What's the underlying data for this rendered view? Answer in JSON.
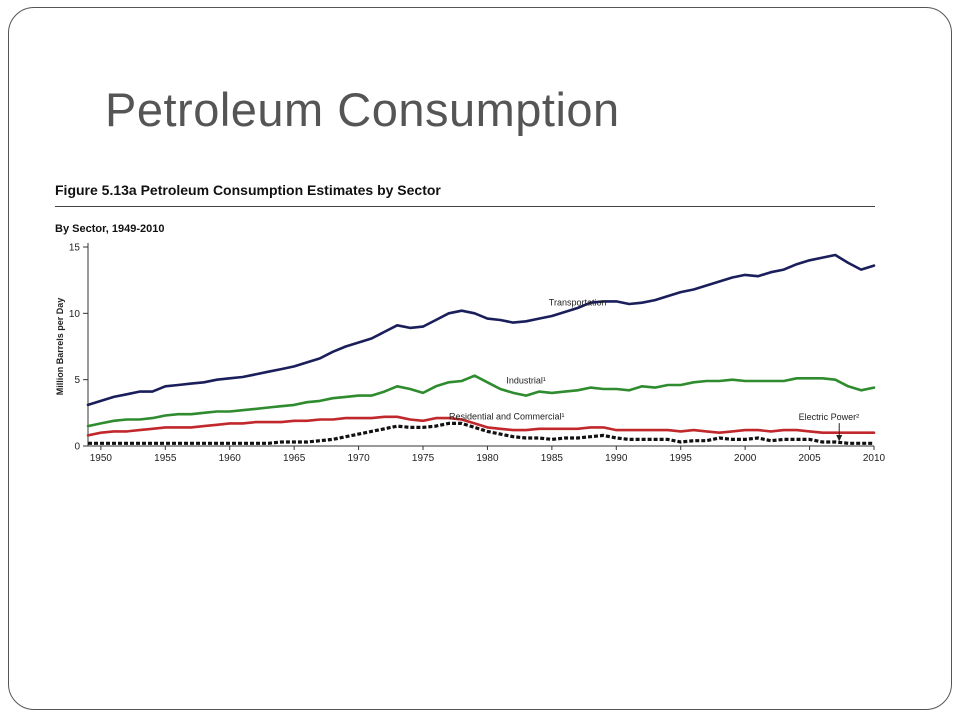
{
  "slide": {
    "title": "Petroleum Consumption"
  },
  "figure": {
    "title": "Figure 5.13a  Petroleum Consumption Estimates by Sector",
    "subtitle": "By Sector, 1949-2010"
  },
  "chart_data": {
    "type": "line",
    "title": "Figure 5.13a  Petroleum Consumption Estimates by Sector",
    "subtitle": "By Sector, 1949-2010",
    "xlabel": "",
    "ylabel": "Million Barrels per Day",
    "xlim": [
      1949,
      2010
    ],
    "ylim": [
      0,
      15
    ],
    "xticks": [
      1950,
      1955,
      1960,
      1965,
      1970,
      1975,
      1980,
      1985,
      1990,
      1995,
      2000,
      2005,
      2010
    ],
    "yticks": [
      0,
      5,
      10,
      15
    ],
    "grid": false,
    "legend": "none (series labeled directly on lines)",
    "series": [
      {
        "name": "Transportation",
        "color": "#1a1f5c",
        "style": "solid",
        "x": [
          1949,
          1950,
          1951,
          1952,
          1953,
          1954,
          1955,
          1956,
          1957,
          1958,
          1959,
          1960,
          1961,
          1962,
          1963,
          1964,
          1965,
          1966,
          1967,
          1968,
          1969,
          1970,
          1971,
          1972,
          1973,
          1974,
          1975,
          1976,
          1977,
          1978,
          1979,
          1980,
          1981,
          1982,
          1983,
          1984,
          1985,
          1986,
          1987,
          1988,
          1989,
          1990,
          1991,
          1992,
          1993,
          1994,
          1995,
          1996,
          1997,
          1998,
          1999,
          2000,
          2001,
          2002,
          2003,
          2004,
          2005,
          2006,
          2007,
          2008,
          2009,
          2010
        ],
        "values": [
          3.1,
          3.4,
          3.7,
          3.9,
          4.1,
          4.1,
          4.5,
          4.6,
          4.7,
          4.8,
          5.0,
          5.1,
          5.2,
          5.4,
          5.6,
          5.8,
          6.0,
          6.3,
          6.6,
          7.1,
          7.5,
          7.8,
          8.1,
          8.6,
          9.1,
          8.9,
          9.0,
          9.5,
          10.0,
          10.2,
          10.0,
          9.6,
          9.5,
          9.3,
          9.4,
          9.6,
          9.8,
          10.1,
          10.4,
          10.8,
          10.9,
          10.9,
          10.7,
          10.8,
          11.0,
          11.3,
          11.6,
          11.8,
          12.1,
          12.4,
          12.7,
          12.9,
          12.8,
          13.1,
          13.3,
          13.7,
          14.0,
          14.2,
          14.4,
          13.8,
          13.3,
          13.6
        ]
      },
      {
        "name": "Industrial¹",
        "color": "#2e8b2e",
        "style": "solid",
        "x": [
          1949,
          1950,
          1951,
          1952,
          1953,
          1954,
          1955,
          1956,
          1957,
          1958,
          1959,
          1960,
          1961,
          1962,
          1963,
          1964,
          1965,
          1966,
          1967,
          1968,
          1969,
          1970,
          1971,
          1972,
          1973,
          1974,
          1975,
          1976,
          1977,
          1978,
          1979,
          1980,
          1981,
          1982,
          1983,
          1984,
          1985,
          1986,
          1987,
          1988,
          1989,
          1990,
          1991,
          1992,
          1993,
          1994,
          1995,
          1996,
          1997,
          1998,
          1999,
          2000,
          2001,
          2002,
          2003,
          2004,
          2005,
          2006,
          2007,
          2008,
          2009,
          2010
        ],
        "values": [
          1.5,
          1.7,
          1.9,
          2.0,
          2.0,
          2.1,
          2.3,
          2.4,
          2.4,
          2.5,
          2.6,
          2.6,
          2.7,
          2.8,
          2.9,
          3.0,
          3.1,
          3.3,
          3.4,
          3.6,
          3.7,
          3.8,
          3.8,
          4.1,
          4.5,
          4.3,
          4.0,
          4.5,
          4.8,
          4.9,
          5.3,
          4.8,
          4.3,
          4.0,
          3.8,
          4.1,
          4.0,
          4.1,
          4.2,
          4.4,
          4.3,
          4.3,
          4.2,
          4.5,
          4.4,
          4.6,
          4.6,
          4.8,
          4.9,
          4.9,
          5.0,
          4.9,
          4.9,
          4.9,
          4.9,
          5.1,
          5.1,
          5.1,
          5.0,
          4.5,
          4.2,
          4.4
        ]
      },
      {
        "name": "Residential and Commercial¹",
        "color": "#c0282c",
        "style": "solid",
        "x": [
          1949,
          1950,
          1951,
          1952,
          1953,
          1954,
          1955,
          1956,
          1957,
          1958,
          1959,
          1960,
          1961,
          1962,
          1963,
          1964,
          1965,
          1966,
          1967,
          1968,
          1969,
          1970,
          1971,
          1972,
          1973,
          1974,
          1975,
          1976,
          1977,
          1978,
          1979,
          1980,
          1981,
          1982,
          1983,
          1984,
          1985,
          1986,
          1987,
          1988,
          1989,
          1990,
          1991,
          1992,
          1993,
          1994,
          1995,
          1996,
          1997,
          1998,
          1999,
          2000,
          2001,
          2002,
          2003,
          2004,
          2005,
          2006,
          2007,
          2008,
          2009,
          2010
        ],
        "values": [
          0.8,
          1.0,
          1.1,
          1.1,
          1.2,
          1.3,
          1.4,
          1.4,
          1.4,
          1.5,
          1.6,
          1.7,
          1.7,
          1.8,
          1.8,
          1.8,
          1.9,
          1.9,
          2.0,
          2.0,
          2.1,
          2.1,
          2.1,
          2.2,
          2.2,
          2.0,
          1.9,
          2.1,
          2.1,
          2.0,
          1.7,
          1.4,
          1.3,
          1.2,
          1.2,
          1.3,
          1.3,
          1.3,
          1.3,
          1.4,
          1.4,
          1.2,
          1.2,
          1.2,
          1.2,
          1.2,
          1.1,
          1.2,
          1.1,
          1.0,
          1.1,
          1.2,
          1.2,
          1.1,
          1.2,
          1.2,
          1.1,
          1.0,
          1.0,
          1.0,
          1.0,
          1.0
        ]
      },
      {
        "name": "Electric Power²",
        "color": "#111111",
        "style": "dashed",
        "x": [
          1949,
          1950,
          1951,
          1952,
          1953,
          1954,
          1955,
          1956,
          1957,
          1958,
          1959,
          1960,
          1961,
          1962,
          1963,
          1964,
          1965,
          1966,
          1967,
          1968,
          1969,
          1970,
          1971,
          1972,
          1973,
          1974,
          1975,
          1976,
          1977,
          1978,
          1979,
          1980,
          1981,
          1982,
          1983,
          1984,
          1985,
          1986,
          1987,
          1988,
          1989,
          1990,
          1991,
          1992,
          1993,
          1994,
          1995,
          1996,
          1997,
          1998,
          1999,
          2000,
          2001,
          2002,
          2003,
          2004,
          2005,
          2006,
          2007,
          2008,
          2009,
          2010
        ],
        "values": [
          0.2,
          0.2,
          0.2,
          0.2,
          0.2,
          0.2,
          0.2,
          0.2,
          0.2,
          0.2,
          0.2,
          0.2,
          0.2,
          0.2,
          0.2,
          0.3,
          0.3,
          0.3,
          0.4,
          0.5,
          0.7,
          0.9,
          1.1,
          1.3,
          1.5,
          1.4,
          1.4,
          1.5,
          1.7,
          1.7,
          1.4,
          1.1,
          0.9,
          0.7,
          0.6,
          0.6,
          0.5,
          0.6,
          0.6,
          0.7,
          0.8,
          0.6,
          0.5,
          0.5,
          0.5,
          0.5,
          0.3,
          0.4,
          0.4,
          0.6,
          0.5,
          0.5,
          0.6,
          0.4,
          0.5,
          0.5,
          0.5,
          0.3,
          0.3,
          0.2,
          0.2,
          0.2
        ]
      }
    ],
    "annotations": [
      {
        "text": "Transportation",
        "x": 1987.0,
        "y": 10.6,
        "series": 0
      },
      {
        "text": "Industrial¹",
        "x": 1983.0,
        "y": 4.7,
        "series": 1
      },
      {
        "text": "Residential and Commercial¹",
        "x": 1981.5,
        "y": 2.0,
        "series": 2
      },
      {
        "text": "Electric Power²",
        "x": 2006.5,
        "y": 1.95,
        "series": 3,
        "arrow": true
      }
    ]
  }
}
